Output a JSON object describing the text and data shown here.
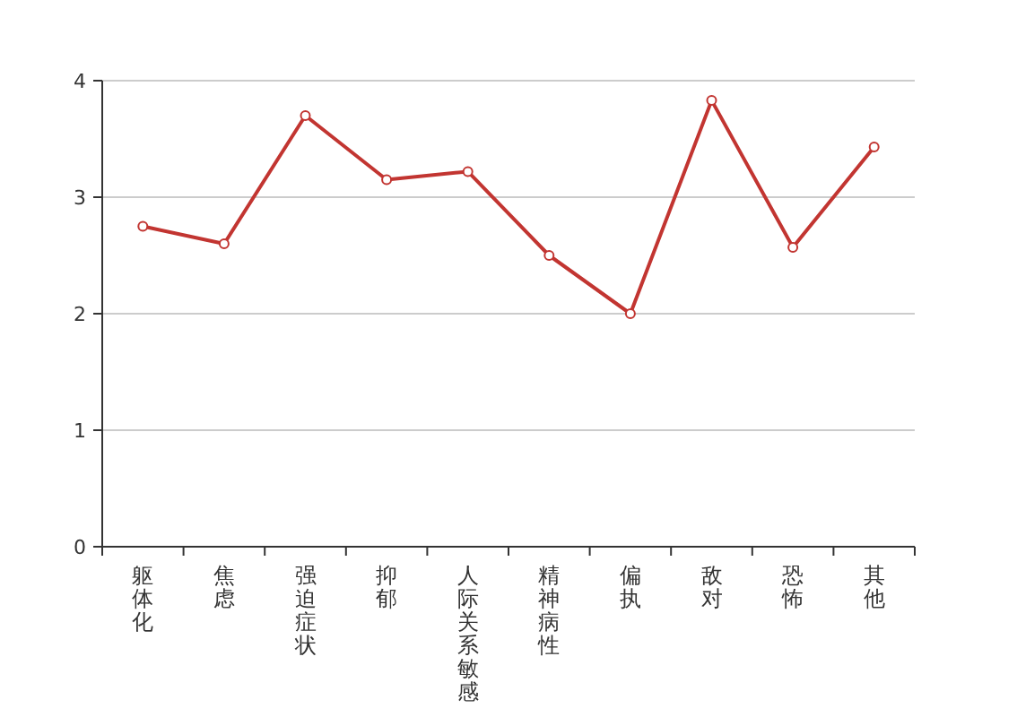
{
  "chart_data": {
    "type": "line",
    "categories": [
      "躯体化",
      "焦虑",
      "强迫症状",
      "抑郁",
      "人际关系敏感",
      "精神病性",
      "偏执",
      "敌对",
      "恐怖",
      "其他"
    ],
    "series": [
      {
        "color": "#c23531",
        "values": [
          2.75,
          2.6,
          3.7,
          3.15,
          3.22,
          2.5,
          2.0,
          3.83,
          2.57,
          3.43
        ]
      }
    ],
    "ylim": [
      0,
      4
    ],
    "yticks": [
      0,
      1,
      2,
      3,
      4
    ],
    "grid": "y",
    "marker": "circle"
  }
}
